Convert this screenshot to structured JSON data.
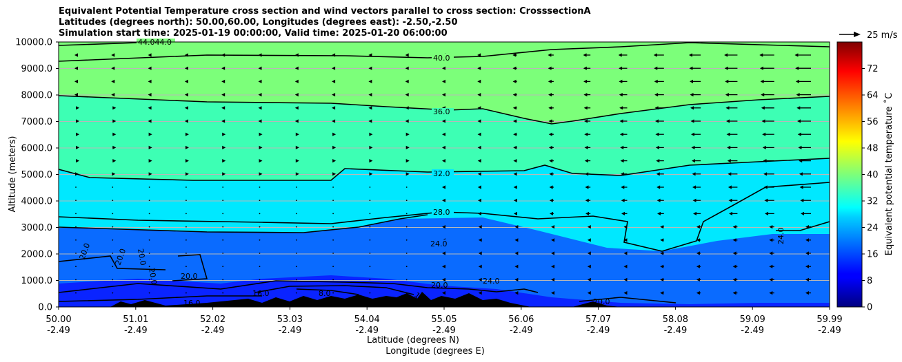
{
  "header": {
    "title_line1": "Equivalent Potential Temperature cross section and wind vectors parallel to cross section: CrosssectionA",
    "title_line2": "Latitudes (degrees north): 50.00,60.00, Longitudes (degrees east): -2.50,-2.50",
    "title_line3": "Simulation start time: 2025-01-19 00:00:00, Valid time: 2025-01-20 06:00:00"
  },
  "chart_data": {
    "type": "heatmap",
    "title": "Equivalent Potential Temperature cross section and wind vectors parallel to cross section: CrosssectionA",
    "xlabel_line1": "Latitude (degrees N)",
    "xlabel_line2": "Longitude (degrees E)",
    "ylabel": "Altitude (meters)",
    "x_ticks": [
      {
        "lat": "50.00",
        "lon": "-2.49"
      },
      {
        "lat": "51.01",
        "lon": "-2.49"
      },
      {
        "lat": "52.02",
        "lon": "-2.49"
      },
      {
        "lat": "53.03",
        "lon": "-2.49"
      },
      {
        "lat": "54.04",
        "lon": "-2.49"
      },
      {
        "lat": "55.05",
        "lon": "-2.49"
      },
      {
        "lat": "56.06",
        "lon": "-2.49"
      },
      {
        "lat": "57.07",
        "lon": "-2.49"
      },
      {
        "lat": "58.08",
        "lon": "-2.49"
      },
      {
        "lat": "59.09",
        "lon": "-2.49"
      },
      {
        "lat": "59.99",
        "lon": "-2.49"
      }
    ],
    "y_ticks": [
      "0.0",
      "1000.0",
      "2000.0",
      "3000.0",
      "4000.0",
      "5000.0",
      "6000.0",
      "7000.0",
      "8000.0",
      "9000.0",
      "10000.0"
    ],
    "ylim": [
      0,
      10000
    ],
    "grid": "horizontal",
    "colorbar": {
      "label": "Equivalent potential temperature ˚C",
      "range": [
        0,
        80
      ],
      "ticks": [
        "0",
        "8",
        "16",
        "24",
        "32",
        "40",
        "48",
        "56",
        "64",
        "72"
      ],
      "colormap": "jet"
    },
    "contours": [
      {
        "level": 40,
        "label": "40.0"
      },
      {
        "level": 36,
        "label": "36.0"
      },
      {
        "level": 32,
        "label": "32.0"
      },
      {
        "level": 28,
        "label": "28.0"
      },
      {
        "level": 24,
        "label": "24.0"
      },
      {
        "level": 20,
        "label": "20.0"
      },
      {
        "level": 16,
        "label": "16.0"
      },
      {
        "level": 12,
        "label": "12.0"
      },
      {
        "level": 8,
        "label": "8.0"
      }
    ],
    "top_label": "44.044.0",
    "wind_key": {
      "label": "25 m/s",
      "speed": 25
    },
    "terrain_color": "#000000"
  },
  "colors": {
    "upper_layer": "#7cff7a",
    "mid_layer": "#3dffb4",
    "lower_layer": "#00e8ff",
    "boundary_layer": "#0a6bff",
    "surface_layer": "#0a24ff",
    "gridline": "#b8b8b8"
  }
}
